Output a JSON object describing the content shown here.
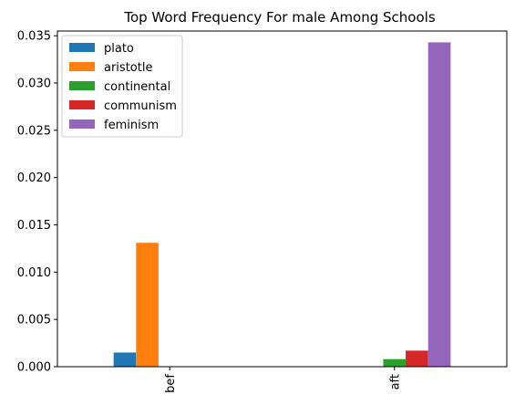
{
  "chart_data": {
    "type": "bar",
    "title": "Top Word Frequency For male Among Schools",
    "xlabel": "",
    "ylabel": "",
    "categories": [
      "bef",
      "aft"
    ],
    "series": [
      {
        "name": "plato",
        "values": [
          0.0015,
          0.0
        ],
        "color": "#1f77b4"
      },
      {
        "name": "aristotle",
        "values": [
          0.0131,
          0.0
        ],
        "color": "#ff7f0e"
      },
      {
        "name": "continental",
        "values": [
          0.0,
          0.0008
        ],
        "color": "#2ca02c"
      },
      {
        "name": "communism",
        "values": [
          0.0,
          0.0017
        ],
        "color": "#d62728"
      },
      {
        "name": "feminism",
        "values": [
          0.0,
          0.0343
        ],
        "color": "#9467bd"
      }
    ],
    "ylim": [
      0,
      0.0355
    ],
    "yticks": [
      "0.000",
      "0.005",
      "0.010",
      "0.015",
      "0.020",
      "0.025",
      "0.030",
      "0.035"
    ],
    "ytick_values": [
      0,
      0.005,
      0.01,
      0.015,
      0.02,
      0.025,
      0.03,
      0.035
    ],
    "legend_position": "top-left",
    "grid": false
  }
}
